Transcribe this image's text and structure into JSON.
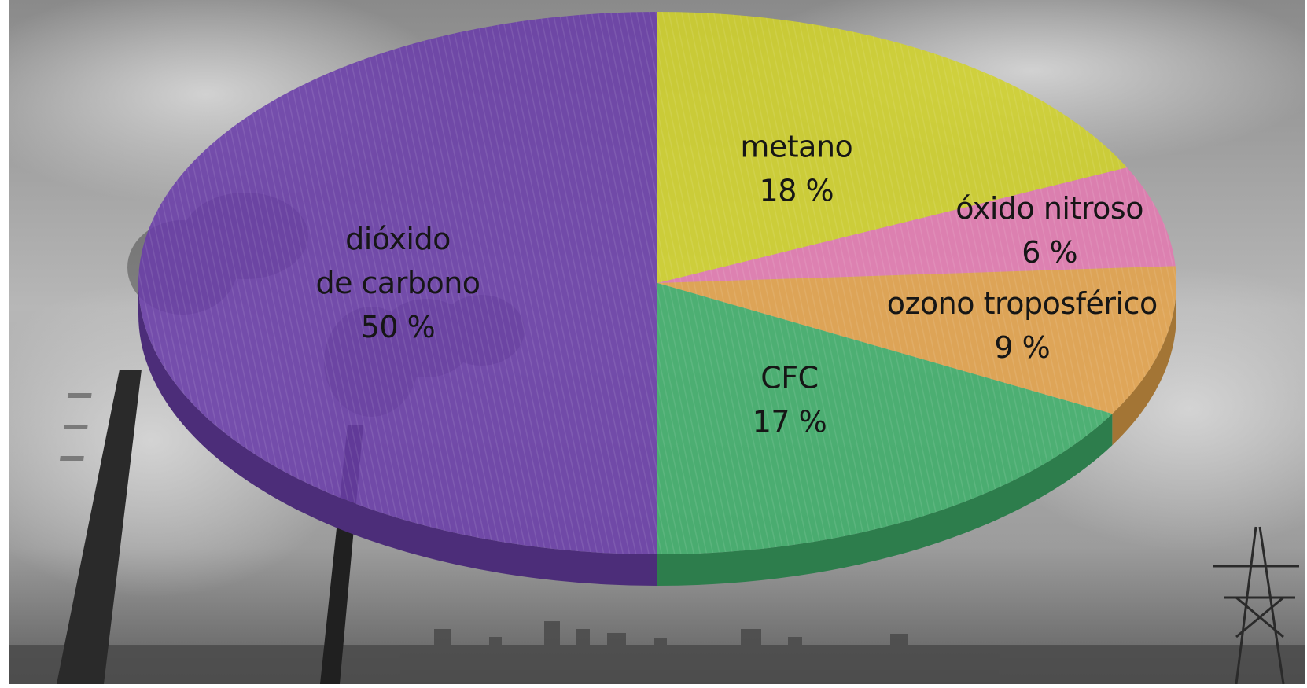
{
  "chart_data": {
    "type": "pie",
    "title": "",
    "slices": [
      {
        "label_lines": [
          "metano",
          "18 %"
        ],
        "value": 18,
        "color": "#d0d22a"
      },
      {
        "label_lines": [
          "óxido nitroso",
          "6 %"
        ],
        "value": 6,
        "color": "#e37ab0"
      },
      {
        "label_lines": [
          "ozono troposférico",
          "9 %"
        ],
        "value": 9,
        "color": "#e3a24a"
      },
      {
        "label_lines": [
          "CFC",
          "17 %"
        ],
        "value": 17,
        "color": "#3fae6a"
      },
      {
        "label_lines": [
          "dióxido",
          "de carbono",
          "50 %"
        ],
        "value": 50,
        "color": "#6a3ea8"
      }
    ],
    "background": "photo of smokestacks emitting smoke under an overcast sky"
  }
}
